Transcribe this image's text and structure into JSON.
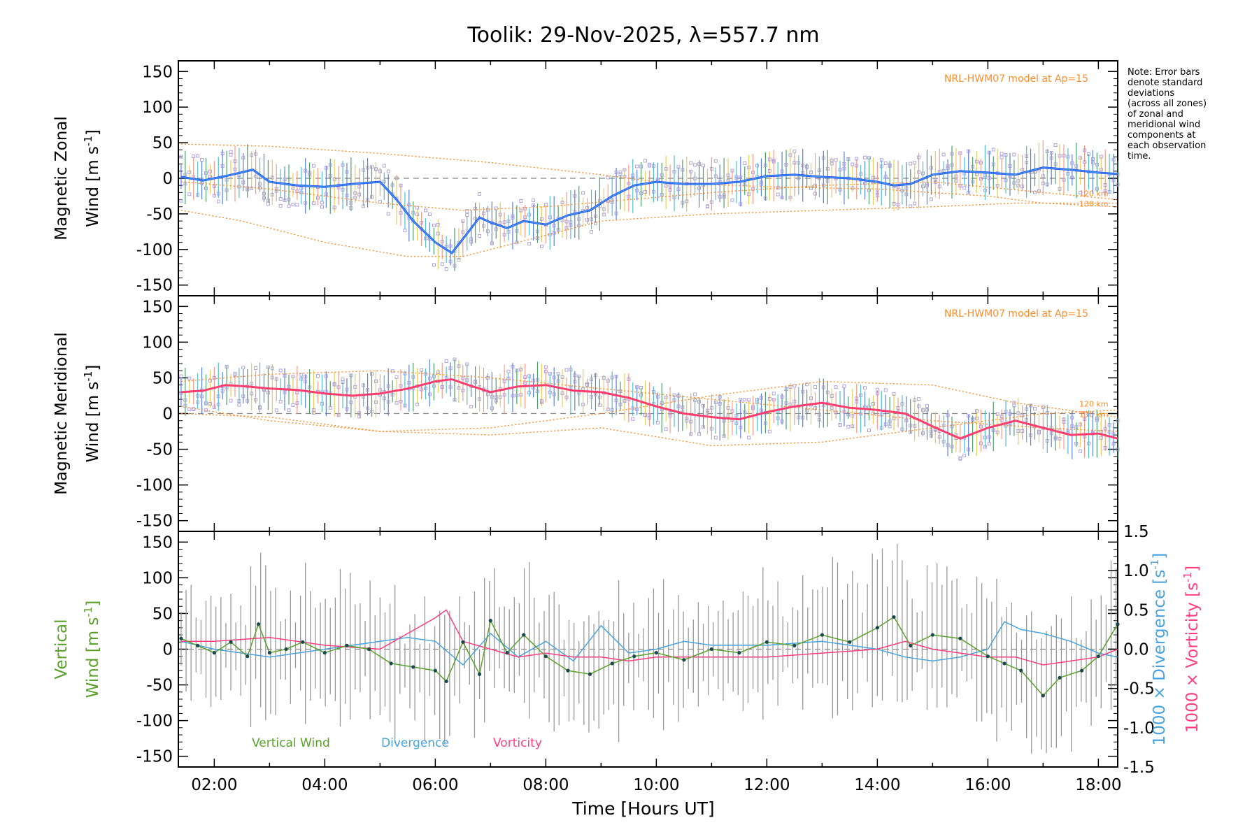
{
  "title": "Toolik: 29-Nov-2025, λ=557.7 nm",
  "note_lines": [
    "Note: Error bars",
    "denote standard",
    "deviations",
    "(across all zones)",
    "of zonal and",
    "meridional wind",
    "components at",
    "each observation",
    "time."
  ],
  "xlabel": "Time [Hours UT]",
  "x_ticks": [
    "02:00",
    "04:00",
    "06:00",
    "08:00",
    "10:00",
    "12:00",
    "14:00",
    "16:00",
    "18:00"
  ],
  "colors": {
    "zonal": "#1f4fff",
    "zonal_light": "#4aa3e8",
    "meridional": "#ff3d6e",
    "vertical": "#5aa02c",
    "divergence": "#4aa3dd",
    "vorticity": "#ff3d7f",
    "model": "#ff8c2a",
    "scatter": "#a89cd8"
  },
  "chart_data": [
    {
      "type": "line",
      "panel": "zonal",
      "ylabel_line1": "Magnetic Zonal",
      "ylabel_line2": "Wind [m s",
      "ylabel_sup": "-1",
      "ylabel_end": "]",
      "model_label": "NRL-HWM07 model at Ap=15",
      "alt_labels": [
        "120 km",
        "130 km"
      ],
      "ylim": [
        -165,
        165
      ],
      "y_ticks": [
        150,
        100,
        50,
        0,
        -50,
        -100,
        -150
      ],
      "xlim": [
        1.35,
        18.35
      ],
      "series": [
        {
          "name": "zonal wind",
          "x": [
            1.4,
            1.8,
            2.2,
            2.7,
            3.0,
            3.5,
            4.0,
            4.5,
            5.0,
            5.3,
            5.6,
            6.0,
            6.3,
            6.6,
            6.8,
            7.0,
            7.3,
            7.6,
            8.0,
            8.4,
            8.8,
            9.2,
            9.6,
            10.0,
            10.5,
            11.0,
            11.5,
            12.0,
            12.5,
            13.0,
            13.5,
            14.0,
            14.3,
            14.6,
            15.0,
            15.5,
            16.0,
            16.5,
            17.0,
            17.5,
            18.0,
            18.35
          ],
          "y": [
            2,
            -3,
            3,
            12,
            -5,
            -10,
            -12,
            -8,
            -5,
            -30,
            -60,
            -90,
            -105,
            -75,
            -55,
            -62,
            -70,
            -60,
            -65,
            -52,
            -45,
            -25,
            -10,
            -5,
            -8,
            -8,
            -5,
            3,
            5,
            2,
            0,
            -5,
            -10,
            -8,
            5,
            10,
            8,
            5,
            15,
            12,
            8,
            6
          ],
          "error": 28
        },
        {
          "name": "model 120 km",
          "x": [
            1.4,
            3,
            5,
            7,
            9,
            10,
            12,
            14,
            16,
            17,
            18.35
          ],
          "y": [
            48,
            45,
            35,
            22,
            5,
            -5,
            -12,
            -15,
            -25,
            -35,
            -40
          ],
          "model": true
        },
        {
          "name": "model 130 km",
          "x": [
            1.4,
            2.5,
            4,
            5.5,
            6.5,
            7.5,
            9,
            11,
            13,
            15,
            16.5,
            18.35
          ],
          "y": [
            -45,
            -60,
            -90,
            -110,
            -110,
            -90,
            -60,
            -50,
            -45,
            -40,
            -35,
            -35
          ],
          "model": true
        },
        {
          "name": "model 120 km b",
          "x": [
            1.4,
            3,
            5,
            6.5,
            8,
            9.5,
            11,
            13,
            15,
            17,
            18.35
          ],
          "y": [
            -5,
            -15,
            -35,
            -45,
            -40,
            -30,
            -20,
            -10,
            -5,
            -20,
            -30
          ],
          "model": true
        }
      ]
    },
    {
      "type": "line",
      "panel": "meridional",
      "ylabel_line1": "Magnetic Meridional",
      "ylabel_line2": "Wind [m s",
      "ylabel_sup": "-1",
      "ylabel_end": "]",
      "model_label": "NRL-HWM07 model at Ap=15",
      "alt_labels": [
        "120 km",
        "130 km"
      ],
      "ylim": [
        -165,
        165
      ],
      "y_ticks": [
        150,
        100,
        50,
        0,
        -50,
        -100,
        -150
      ],
      "xlim": [
        1.35,
        18.35
      ],
      "series": [
        {
          "name": "meridional wind",
          "x": [
            1.4,
            1.8,
            2.2,
            2.6,
            3.0,
            3.5,
            4.0,
            4.5,
            5.0,
            5.5,
            6.0,
            6.3,
            6.6,
            7.0,
            7.5,
            8.0,
            8.5,
            9.0,
            9.5,
            10.0,
            10.5,
            11.0,
            11.5,
            12.0,
            12.5,
            13.0,
            13.5,
            14.0,
            14.5,
            15.0,
            15.5,
            16.0,
            16.5,
            17.0,
            17.5,
            18.0,
            18.35
          ],
          "y": [
            30,
            32,
            40,
            38,
            35,
            33,
            28,
            25,
            28,
            35,
            45,
            48,
            40,
            30,
            38,
            40,
            32,
            30,
            22,
            10,
            0,
            -5,
            -8,
            2,
            10,
            15,
            8,
            5,
            0,
            -18,
            -35,
            -20,
            -10,
            -20,
            -30,
            -28,
            -35
          ],
          "error": 25
        },
        {
          "name": "model 120 km",
          "x": [
            1.4,
            3,
            5,
            7,
            9,
            11,
            13,
            15,
            17,
            18.35
          ],
          "y": [
            45,
            55,
            60,
            50,
            35,
            20,
            5,
            -10,
            -20,
            -25
          ],
          "model": true
        },
        {
          "name": "model 130 km",
          "x": [
            1.4,
            3,
            5,
            7,
            9,
            11,
            13,
            15,
            16.5,
            18.35
          ],
          "y": [
            10,
            -10,
            -25,
            -20,
            0,
            25,
            45,
            40,
            15,
            -5
          ],
          "model": true
        },
        {
          "name": "model c",
          "x": [
            1.4,
            3,
            5,
            7,
            9,
            11,
            13,
            15,
            17,
            18.35
          ],
          "y": [
            0,
            -5,
            -25,
            -30,
            -20,
            -45,
            -40,
            -20,
            0,
            5
          ],
          "model": true
        }
      ]
    },
    {
      "type": "line",
      "panel": "vertical",
      "ylabel_line1": "Vertical",
      "ylabel_line2": "Wind [m s",
      "ylabel_sup": "-1",
      "ylabel_end": "]",
      "right_label_div": "1000 × Divergence [s",
      "right_label_vort": "1000 × Vorticity [s",
      "right_sup": "-1",
      "right_end": "]",
      "ylim": [
        -165,
        165
      ],
      "y_ticks": [
        150,
        100,
        50,
        0,
        -50,
        -100,
        -150
      ],
      "y2lim": [
        -1.5,
        1.5
      ],
      "y2_ticks": [
        "1.5",
        "1.0",
        "0.5",
        "0.0",
        "-0.5",
        "-1.0",
        "-1.5"
      ],
      "y2_values": [
        1.5,
        1.0,
        0.5,
        0.0,
        -0.5,
        -1.0,
        -1.5
      ],
      "xlim": [
        1.35,
        18.35
      ],
      "legend": [
        "Vertical Wind",
        "Divergence",
        "Vorticity"
      ],
      "series": [
        {
          "name": "vertical wind",
          "x": [
            1.4,
            1.7,
            2.0,
            2.3,
            2.6,
            2.8,
            3.0,
            3.3,
            3.6,
            4.0,
            4.4,
            4.8,
            5.2,
            5.6,
            6.0,
            6.2,
            6.5,
            6.8,
            7.0,
            7.3,
            7.6,
            8.0,
            8.4,
            8.8,
            9.2,
            9.6,
            10.0,
            10.5,
            11.0,
            11.5,
            12.0,
            12.5,
            13.0,
            13.5,
            14.0,
            14.3,
            14.6,
            15.0,
            15.5,
            16.0,
            16.3,
            16.6,
            17.0,
            17.3,
            17.7,
            18.0,
            18.35
          ],
          "y": [
            15,
            5,
            -5,
            10,
            -10,
            35,
            -5,
            0,
            10,
            -5,
            5,
            0,
            -20,
            -25,
            -30,
            -45,
            10,
            -35,
            40,
            -5,
            20,
            -10,
            -30,
            -35,
            -20,
            -10,
            -5,
            -15,
            0,
            -5,
            10,
            5,
            20,
            10,
            30,
            45,
            5,
            20,
            15,
            -10,
            -20,
            -30,
            -65,
            -40,
            -30,
            -10,
            35
          ],
          "error": 60
        },
        {
          "name": "divergence",
          "x": [
            1.4,
            2,
            3,
            4,
            5,
            5.5,
            6,
            6.5,
            7,
            7.5,
            8,
            8.5,
            9,
            9.5,
            10,
            10.5,
            11,
            12,
            13,
            14,
            14.5,
            15,
            15.5,
            16,
            16.3,
            16.6,
            17,
            17.5,
            18,
            18.35
          ],
          "y2": [
            0.1,
            0.0,
            -0.1,
            0.0,
            0.1,
            0.15,
            0.1,
            -0.2,
            0.2,
            -0.1,
            0.1,
            -0.15,
            0.3,
            -0.05,
            0.0,
            0.1,
            0.05,
            0.05,
            0.1,
            0.0,
            -0.1,
            -0.15,
            -0.1,
            0.0,
            0.35,
            0.25,
            0.2,
            0.1,
            -0.05,
            -0.1
          ]
        },
        {
          "name": "vorticity",
          "x": [
            1.4,
            2,
            3,
            4,
            5,
            5.5,
            6,
            6.2,
            6.5,
            7,
            7.5,
            8,
            8.5,
            9,
            9.5,
            10,
            11,
            12,
            13,
            14,
            14.5,
            15,
            15.5,
            16,
            16.5,
            17,
            17.5,
            18,
            18.35
          ],
          "y2": [
            0.1,
            0.1,
            0.15,
            0.05,
            0.0,
            0.2,
            0.4,
            0.5,
            0.1,
            0.0,
            -0.1,
            -0.05,
            -0.1,
            -0.1,
            -0.15,
            -0.1,
            -0.1,
            -0.1,
            -0.05,
            0.0,
            0.1,
            0.0,
            -0.05,
            -0.1,
            -0.1,
            -0.2,
            -0.15,
            -0.1,
            0.0
          ]
        }
      ]
    }
  ]
}
